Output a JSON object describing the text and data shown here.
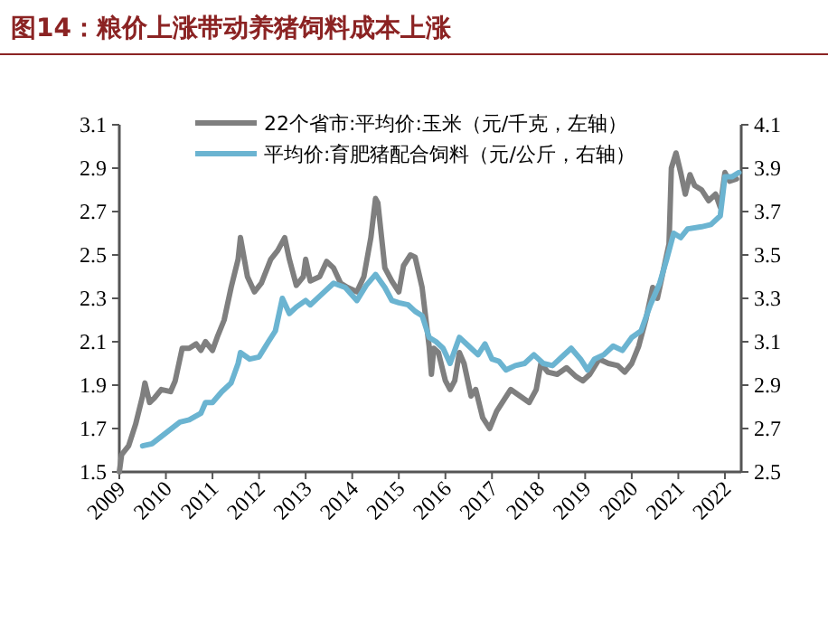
{
  "chart_data": {
    "type": "line",
    "title": "图14：粮价上涨带动养猪饲料成本上涨",
    "xlim": [
      2009,
      2022.35
    ],
    "xticks": [
      2009,
      2010,
      2011,
      2012,
      2013,
      2014,
      2015,
      2016,
      2017,
      2018,
      2019,
      2020,
      2021,
      2022
    ],
    "ylim": [
      1.5,
      3.1
    ],
    "yticks": [
      {
        "value": 1.5,
        "label": "1.5"
      },
      {
        "value": 1.7,
        "label": "1.7"
      },
      {
        "value": 1.9,
        "label": "1.9"
      },
      {
        "value": 2.1,
        "label": "2.1"
      },
      {
        "value": 2.3,
        "label": "2.3"
      },
      {
        "value": 2.5,
        "label": "2.5"
      },
      {
        "value": 2.7,
        "label": "2.7"
      },
      {
        "value": 2.9,
        "label": "2.9"
      },
      {
        "value": 3.1,
        "label": "3.1"
      }
    ],
    "y2lim": [
      2.5,
      4.1
    ],
    "y2ticks": [
      {
        "value": 2.5,
        "label": "2.5"
      },
      {
        "value": 2.7,
        "label": "2.7"
      },
      {
        "value": 2.9,
        "label": "2.9"
      },
      {
        "value": 3.1,
        "label": "3.1"
      },
      {
        "value": 3.3,
        "label": "3.3"
      },
      {
        "value": 3.5,
        "label": "3.5"
      },
      {
        "value": 3.7,
        "label": "3.7"
      },
      {
        "value": 3.9,
        "label": "3.9"
      },
      {
        "value": 4.1,
        "label": "4.1"
      }
    ],
    "legend": "top",
    "grid": false,
    "marker": "none",
    "line_style": "solid",
    "series": [
      {
        "name": "22个省市:平均价:玉米（元/千克，左轴）",
        "color": "#7f7f7f",
        "x": [
          2009.0,
          2009.05,
          2009.2,
          2009.35,
          2009.5,
          2009.55,
          2009.65,
          2009.75,
          2009.9,
          2010.1,
          2010.2,
          2010.35,
          2010.5,
          2010.65,
          2010.75,
          2010.85,
          2011.0,
          2011.1,
          2011.25,
          2011.4,
          2011.55,
          2011.6,
          2011.75,
          2011.9,
          2012.05,
          2012.25,
          2012.4,
          2012.55,
          2012.65,
          2012.8,
          2012.95,
          2013.0,
          2013.1,
          2013.3,
          2013.45,
          2013.6,
          2013.75,
          2013.9,
          2014.1,
          2014.25,
          2014.4,
          2014.5,
          2014.55,
          2014.7,
          2014.85,
          2015.0,
          2015.1,
          2015.25,
          2015.35,
          2015.5,
          2015.65,
          2015.7,
          2015.75,
          2015.85,
          2016.0,
          2016.1,
          2016.2,
          2016.3,
          2016.4,
          2016.55,
          2016.65,
          2016.8,
          2016.95,
          2017.1,
          2017.25,
          2017.4,
          2017.6,
          2017.8,
          2017.95,
          2018.05,
          2018.2,
          2018.4,
          2018.6,
          2018.8,
          2018.95,
          2019.1,
          2019.3,
          2019.5,
          2019.7,
          2019.85,
          2020.0,
          2020.15,
          2020.3,
          2020.45,
          2020.55,
          2020.7,
          2020.8,
          2020.85,
          2020.95,
          2021.05,
          2021.15,
          2021.25,
          2021.35,
          2021.5,
          2021.65,
          2021.8,
          2021.9,
          2022.0,
          2022.1,
          2022.25
        ],
        "values": [
          1.5,
          1.58,
          1.62,
          1.72,
          1.85,
          1.91,
          1.82,
          1.84,
          1.88,
          1.87,
          1.92,
          2.07,
          2.07,
          2.09,
          2.06,
          2.1,
          2.06,
          2.12,
          2.2,
          2.35,
          2.48,
          2.58,
          2.4,
          2.33,
          2.37,
          2.48,
          2.52,
          2.58,
          2.48,
          2.36,
          2.4,
          2.48,
          2.38,
          2.4,
          2.47,
          2.44,
          2.37,
          2.35,
          2.33,
          2.4,
          2.58,
          2.76,
          2.74,
          2.44,
          2.38,
          2.33,
          2.45,
          2.5,
          2.49,
          2.35,
          2.08,
          1.95,
          2.07,
          2.05,
          1.92,
          1.88,
          1.92,
          2.05,
          2.0,
          1.85,
          1.88,
          1.75,
          1.7,
          1.78,
          1.83,
          1.88,
          1.85,
          1.82,
          1.88,
          2.0,
          1.96,
          1.95,
          1.98,
          1.94,
          1.92,
          1.95,
          2.02,
          2.0,
          1.99,
          1.96,
          2.0,
          2.08,
          2.2,
          2.35,
          2.3,
          2.45,
          2.55,
          2.9,
          2.97,
          2.88,
          2.78,
          2.87,
          2.82,
          2.8,
          2.75,
          2.78,
          2.72,
          2.88,
          2.84,
          2.85
        ]
      },
      {
        "name": "平均价:育肥猪配合饲料（元/公斤，右轴）",
        "color": "#6bb4d1",
        "axis": "y2",
        "x": [
          2009.5,
          2009.7,
          2010.0,
          2010.3,
          2010.5,
          2010.75,
          2010.85,
          2011.0,
          2011.2,
          2011.4,
          2011.55,
          2011.6,
          2011.8,
          2012.0,
          2012.2,
          2012.35,
          2012.5,
          2012.65,
          2012.8,
          2013.0,
          2013.1,
          2013.3,
          2013.6,
          2013.85,
          2014.1,
          2014.3,
          2014.5,
          2014.7,
          2014.85,
          2015.0,
          2015.2,
          2015.35,
          2015.5,
          2015.65,
          2015.8,
          2015.95,
          2016.1,
          2016.3,
          2016.5,
          2016.7,
          2016.85,
          2017.0,
          2017.15,
          2017.3,
          2017.5,
          2017.7,
          2017.9,
          2018.1,
          2018.3,
          2018.5,
          2018.7,
          2018.9,
          2019.05,
          2019.2,
          2019.4,
          2019.6,
          2019.8,
          2020.0,
          2020.2,
          2020.4,
          2020.6,
          2020.75,
          2020.9,
          2021.05,
          2021.2,
          2021.5,
          2021.7,
          2021.9,
          2022.0,
          2022.15,
          2022.3
        ],
        "values": [
          2.62,
          2.63,
          2.68,
          2.73,
          2.74,
          2.77,
          2.82,
          2.82,
          2.87,
          2.91,
          3.0,
          3.05,
          3.02,
          3.03,
          3.1,
          3.15,
          3.3,
          3.23,
          3.26,
          3.29,
          3.27,
          3.31,
          3.37,
          3.35,
          3.29,
          3.36,
          3.41,
          3.35,
          3.29,
          3.28,
          3.27,
          3.24,
          3.22,
          3.12,
          3.1,
          3.07,
          3.0,
          3.12,
          3.08,
          3.04,
          3.09,
          3.02,
          3.01,
          2.97,
          2.99,
          3.0,
          3.04,
          3.0,
          2.99,
          3.03,
          3.07,
          3.02,
          2.97,
          3.02,
          3.04,
          3.08,
          3.06,
          3.12,
          3.15,
          3.27,
          3.37,
          3.48,
          3.6,
          3.58,
          3.62,
          3.63,
          3.64,
          3.68,
          3.86,
          3.86,
          3.88
        ]
      }
    ]
  }
}
